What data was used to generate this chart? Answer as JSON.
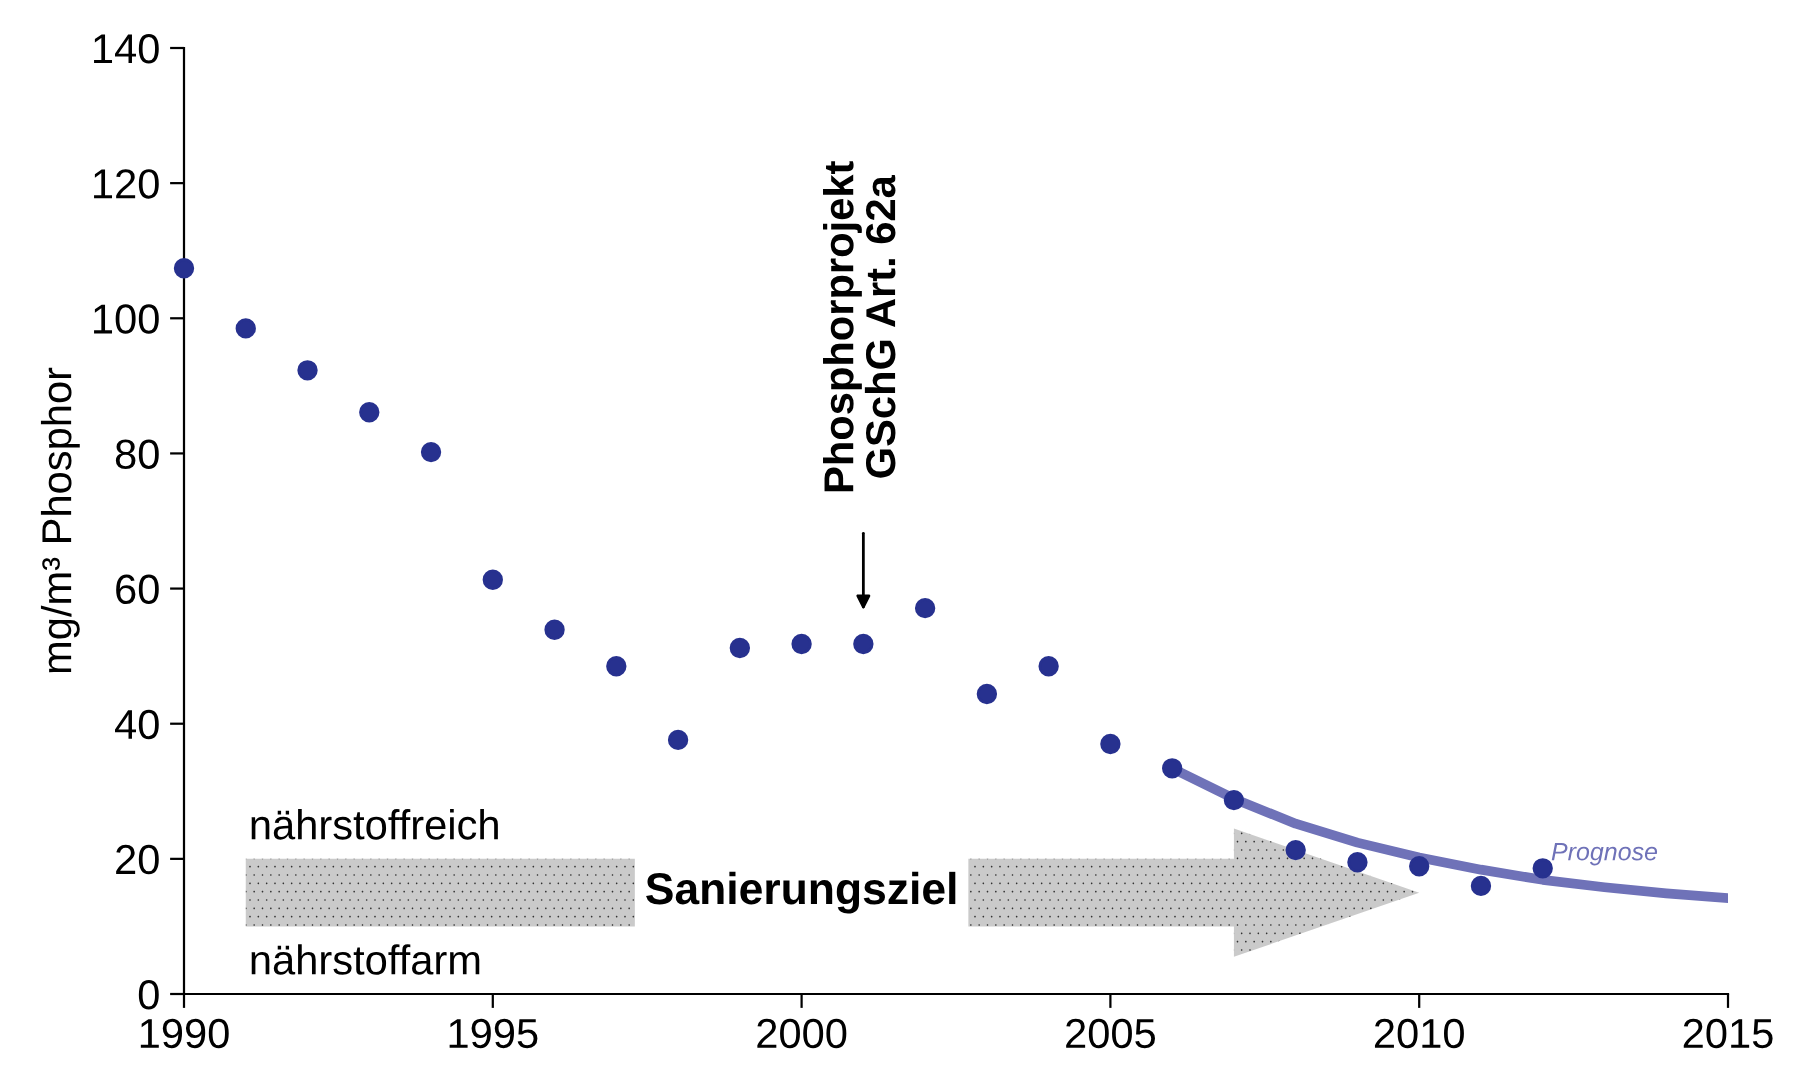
{
  "chart_data": {
    "type": "scatter",
    "ylabel": "mg/m³ Phosphor",
    "xlim": [
      1990,
      2015
    ],
    "ylim": [
      0,
      140
    ],
    "xticks": [
      1990,
      1995,
      2000,
      2005,
      2010,
      2015
    ],
    "yticks": [
      0,
      20,
      40,
      60,
      80,
      100,
      120,
      140
    ],
    "grid": false,
    "legend": false,
    "series": [
      {
        "marker": "circle",
        "color": "#27318f",
        "x": [
          1990,
          1991,
          1992,
          1993,
          1994,
          1995,
          1996,
          1997,
          1998,
          1999,
          2000,
          2001,
          2002,
          2003,
          2004,
          2005,
          2006,
          2007,
          2008,
          2009,
          2010,
          2011,
          2012
        ],
        "values": [
          107.4,
          98.5,
          92.3,
          86.1,
          80.2,
          61.3,
          53.9,
          48.5,
          37.6,
          51.2,
          51.8,
          51.8,
          57.1,
          44.4,
          48.5,
          37.0,
          33.4,
          28.7,
          21.3,
          19.5,
          18.9,
          16.0,
          18.6
        ]
      },
      {
        "type": "line",
        "marker": "none",
        "name": "Prognose",
        "color": "#6f72b8",
        "x": [
          2006,
          2007,
          2008,
          2009,
          2010,
          2011,
          2012,
          2013,
          2014,
          2015
        ],
        "values": [
          33.4,
          28.9,
          25.2,
          22.4,
          20.2,
          18.4,
          16.9,
          15.8,
          14.9,
          14.2
        ]
      }
    ],
    "bands": [
      {
        "axis": "y",
        "from": 10,
        "to": 20,
        "label": "Sanierungsziel",
        "color": "#bdbdbd"
      }
    ],
    "annotations": [
      "Phosphorprojekt\nGSchG Art. 62a",
      "nährstoffreich",
      "nährstoffarm"
    ]
  }
}
